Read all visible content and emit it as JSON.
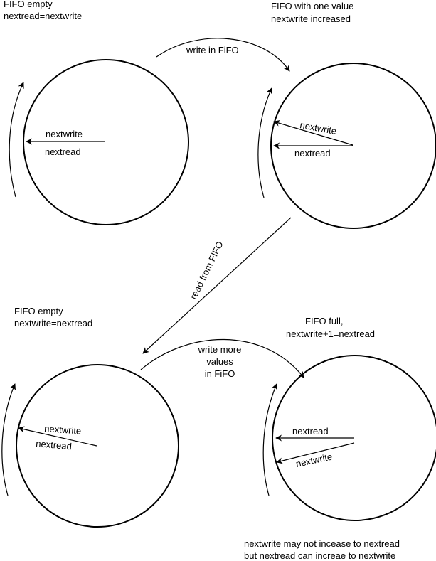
{
  "states": {
    "top_left": {
      "line1": "FIFO empty",
      "line2": "nextread=nextwrite",
      "pointer_a": "nextwrite",
      "pointer_b": "nextread"
    },
    "top_right": {
      "line1": "FIFO with one value",
      "line2": "nextwrite increased",
      "pointer_a": "nextwrite",
      "pointer_b": "nextread"
    },
    "bottom_left": {
      "line1": "FIFO empty",
      "line2": "nextwrite=nextread",
      "pointer_a": "nextwrite",
      "pointer_b": "nextread"
    },
    "bottom_right": {
      "line1": "FIFO full,",
      "line2": "nextwrite+1=nextread",
      "pointer_a": "nextread",
      "pointer_b": "nextwrite"
    }
  },
  "transitions": {
    "write": "write in FiFO",
    "read": "read from FIFO",
    "write_more": [
      "write more",
      "values",
      "in FiFO"
    ]
  },
  "note": {
    "line1": "nextwrite may not incease to nextread",
    "line2": "but nextread can increae to nextwrite"
  }
}
